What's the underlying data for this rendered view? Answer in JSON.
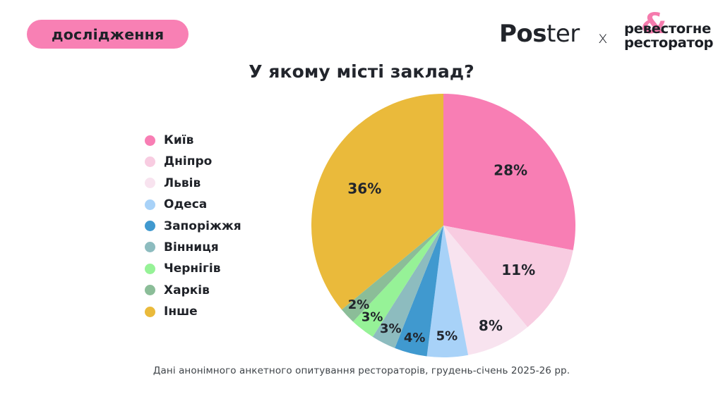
{
  "badge": {
    "label": "дослідження"
  },
  "header": {
    "poster_bold": "Pos",
    "poster_light": "ter",
    "separator": "x",
    "partner_amp": "&",
    "partner_line1": "ревестогне",
    "partner_line2": "ресторатор"
  },
  "title": "У якому місті заклад?",
  "footer": "Дані анонімного анкетного опитування рестораторів, грудень-січень 2025-26 рр.",
  "colors": {
    "background": "#FFFFFF",
    "badge_bg": "#F880B4",
    "amp_pink": "#F57BAD",
    "text_dark": "#22252C"
  },
  "chart_data": {
    "type": "pie",
    "title": "У якому місті заклад?",
    "start_angle_deg": 0,
    "direction": "clockwise",
    "legend_position": "left",
    "label_format": "percent",
    "segments": [
      {
        "label": "Київ",
        "value": 28,
        "color": "#F87EB4"
      },
      {
        "label": "Дніпро",
        "value": 11,
        "color": "#F8CCE1"
      },
      {
        "label": "Львів",
        "value": 8,
        "color": "#F8E3EF"
      },
      {
        "label": "Одеса",
        "value": 5,
        "color": "#A8D2F8"
      },
      {
        "label": "Запоріжжя",
        "value": 4,
        "color": "#4099CF"
      },
      {
        "label": "Вінниця",
        "value": 3,
        "color": "#8DBCBF"
      },
      {
        "label": "Чернігів",
        "value": 3,
        "color": "#96F297"
      },
      {
        "label": "Харків",
        "value": 2,
        "color": "#8BBD98"
      },
      {
        "label": "Інше",
        "value": 36,
        "color": "#EABA3B"
      }
    ]
  }
}
